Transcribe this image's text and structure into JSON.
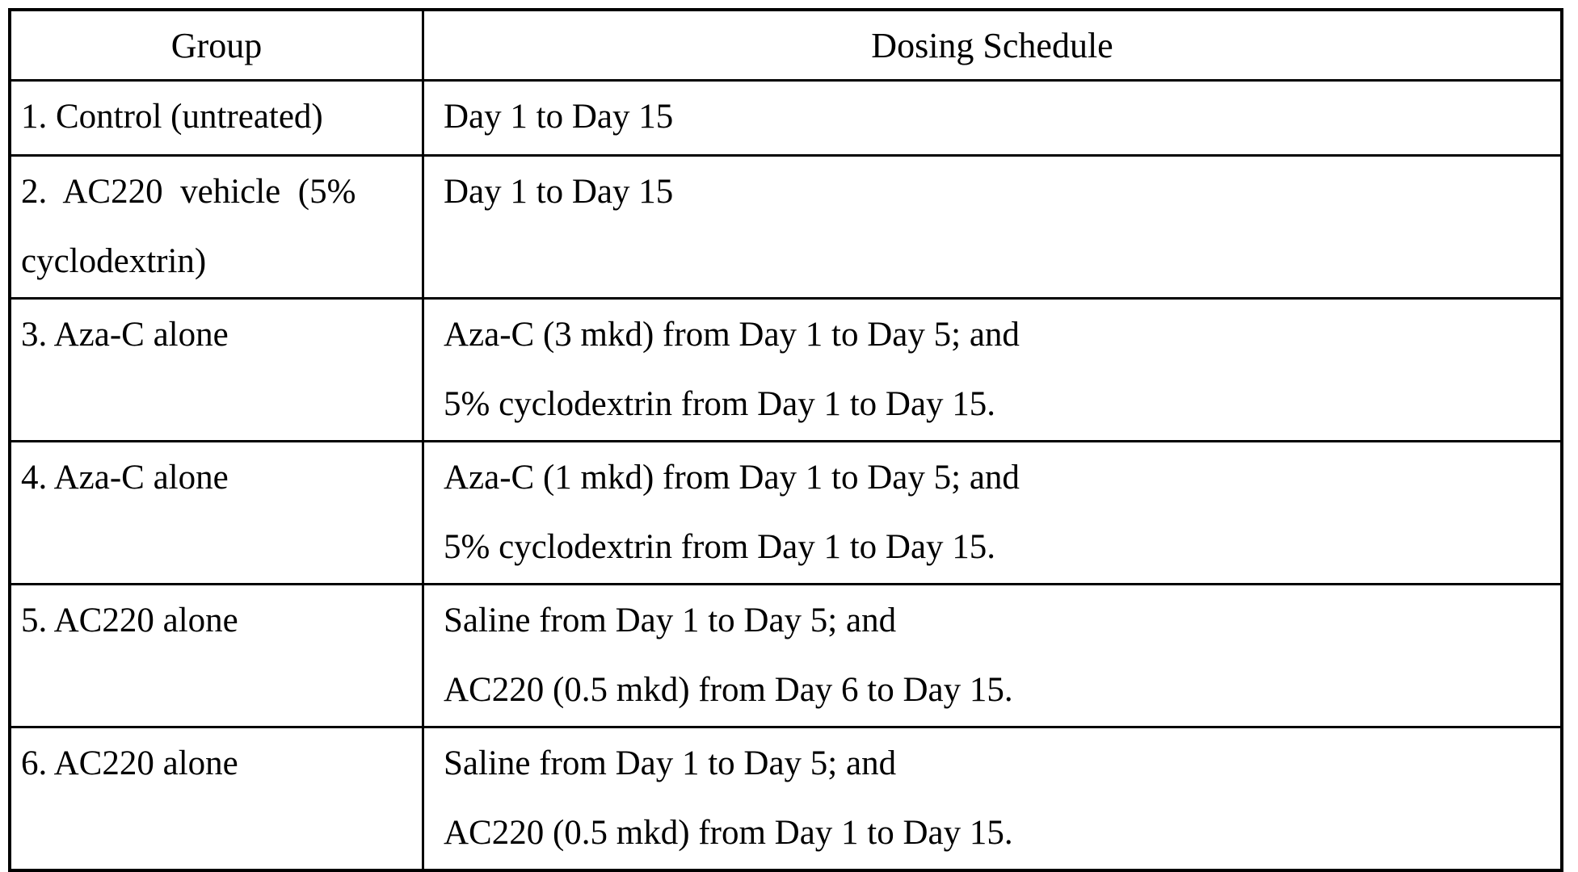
{
  "table": {
    "columns": [
      {
        "label": "Group"
      },
      {
        "label": "Dosing Schedule"
      }
    ],
    "rows": [
      {
        "group_lines": [
          "1. Control (untreated)"
        ],
        "schedule_lines": [
          "Day 1 to Day 15"
        ]
      },
      {
        "group_lines": [
          "2.  AC220  vehicle  (5%",
          "cyclodextrin)"
        ],
        "schedule_lines": [
          "Day 1 to Day 15"
        ]
      },
      {
        "group_lines": [
          "3. Aza-C alone"
        ],
        "schedule_lines": [
          "Aza-C (3 mkd) from Day 1 to Day 5; and",
          "5% cyclodextrin from Day 1 to Day 15."
        ]
      },
      {
        "group_lines": [
          "4. Aza-C alone"
        ],
        "schedule_lines": [
          "Aza-C (1 mkd) from Day 1 to Day 5; and",
          "5% cyclodextrin from Day 1 to Day 15."
        ]
      },
      {
        "group_lines": [
          "5. AC220 alone"
        ],
        "schedule_lines": [
          "Saline from Day 1 to Day 5; and",
          "AC220 (0.5 mkd) from Day 6 to Day 15."
        ]
      },
      {
        "group_lines": [
          "6. AC220 alone"
        ],
        "schedule_lines": [
          "Saline from Day 1 to Day 5; and",
          "AC220 (0.5 mkd) from Day 1 to Day 15."
        ]
      }
    ]
  }
}
